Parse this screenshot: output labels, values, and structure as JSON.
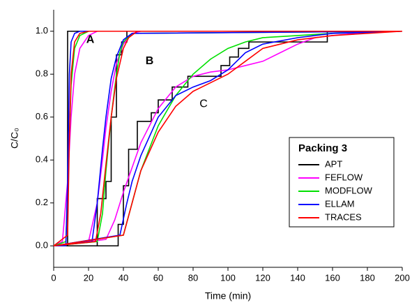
{
  "chart_data": {
    "type": "line",
    "xlabel": "Time (min)",
    "ylabel": "C/C₀",
    "xlim": [
      0,
      200
    ],
    "ylim": [
      -0.1,
      1.1
    ],
    "xticks": [
      0,
      20,
      40,
      60,
      80,
      100,
      120,
      140,
      160,
      180,
      200
    ],
    "yticks": [
      {
        "value": 0,
        "label": "0.0"
      },
      0.2,
      0.4,
      0.6,
      0.8,
      {
        "value": 1,
        "label": "1.0"
      }
    ],
    "legend_title": "Packing 3",
    "legend_position": "lower right",
    "annotations": [
      {
        "text": "A",
        "x": 21,
        "y": 0.96,
        "bold": true
      },
      {
        "text": "B",
        "x": 55,
        "y": 0.86,
        "bold": true
      },
      {
        "text": "C",
        "x": 86,
        "y": 0.66,
        "bold": false
      }
    ],
    "series": [
      {
        "name": "APT",
        "color": "#000000",
        "curves": [
          {
            "x": [
              0,
              8,
              8,
              200
            ],
            "values": [
              0,
              0,
              1,
              1
            ]
          },
          {
            "x": [
              0,
              25,
              25,
              30,
              30,
              33,
              33,
              36,
              36,
              39,
              39,
              42,
              42,
              200
            ],
            "values": [
              0,
              0,
              0.22,
              0.22,
              0.3,
              0.3,
              0.6,
              0.6,
              0.89,
              0.89,
              0.95,
              0.95,
              1,
              1
            ]
          },
          {
            "x": [
              0,
              37,
              37,
              40,
              40,
              43,
              43,
              48,
              48,
              56,
              56,
              60,
              60,
              68,
              68,
              77,
              77,
              96,
              96,
              101,
              101,
              106,
              106,
              112,
              112,
              157,
              157,
              200
            ],
            "values": [
              0,
              0,
              0.1,
              0.1,
              0.28,
              0.28,
              0.45,
              0.45,
              0.58,
              0.58,
              0.62,
              0.62,
              0.68,
              0.68,
              0.74,
              0.74,
              0.79,
              0.79,
              0.84,
              0.84,
              0.88,
              0.88,
              0.92,
              0.92,
              0.95,
              0.95,
              1,
              1
            ]
          }
        ]
      },
      {
        "name": "FEFLOW",
        "color": "#ff00ff",
        "curves": [
          {
            "x": [
              0,
              5,
              8,
              10,
              12,
              15,
              20,
              25,
              30,
              200
            ],
            "values": [
              0,
              0.02,
              0.3,
              0.6,
              0.8,
              0.92,
              0.98,
              1,
              1,
              1
            ]
          },
          {
            "x": [
              0,
              20,
              25,
              28,
              30,
              33,
              36,
              40,
              45,
              50,
              200
            ],
            "values": [
              0,
              0.02,
              0.2,
              0.4,
              0.55,
              0.72,
              0.85,
              0.94,
              0.99,
              1,
              1
            ]
          },
          {
            "x": [
              0,
              30,
              35,
              40,
              50,
              60,
              70,
              80,
              90,
              100,
              110,
              120,
              130,
              140,
              150,
              160,
              180,
              200
            ],
            "values": [
              0,
              0.03,
              0.12,
              0.25,
              0.48,
              0.64,
              0.74,
              0.79,
              0.81,
              0.82,
              0.84,
              0.86,
              0.9,
              0.94,
              0.97,
              0.98,
              0.995,
              1
            ]
          }
        ]
      },
      {
        "name": "MODFLOW",
        "color": "#00e000",
        "curves": [
          {
            "x": [
              0,
              7,
              9,
              10,
              12,
              15,
              20,
              200
            ],
            "values": [
              0,
              0.02,
              0.5,
              0.75,
              0.92,
              0.98,
              1,
              1
            ]
          },
          {
            "x": [
              0,
              25,
              28,
              30,
              33,
              36,
              38,
              40,
              45,
              200
            ],
            "values": [
              0,
              0.02,
              0.15,
              0.35,
              0.6,
              0.8,
              0.9,
              0.95,
              0.99,
              1
            ]
          },
          {
            "x": [
              0,
              40,
              45,
              50,
              60,
              70,
              80,
              90,
              100,
              110,
              120,
              140,
              160,
              180,
              200
            ],
            "values": [
              0,
              0.05,
              0.2,
              0.35,
              0.56,
              0.7,
              0.8,
              0.87,
              0.92,
              0.95,
              0.97,
              0.98,
              0.99,
              0.995,
              1
            ]
          }
        ]
      },
      {
        "name": "ELLAM",
        "color": "#0000ff",
        "curves": [
          {
            "x": [
              0,
              7,
              8,
              9,
              10,
              12,
              15,
              200
            ],
            "values": [
              0,
              0,
              0.3,
              0.8,
              0.95,
              0.99,
              1,
              1
            ]
          },
          {
            "x": [
              0,
              22,
              25,
              28,
              30,
              33,
              36,
              40,
              45,
              200
            ],
            "values": [
              0,
              0.02,
              0.2,
              0.45,
              0.6,
              0.78,
              0.88,
              0.96,
              0.99,
              1
            ]
          },
          {
            "x": [
              0,
              38,
              42,
              45,
              50,
              60,
              70,
              80,
              90,
              100,
              110,
              120,
              140,
              160,
              180,
              200
            ],
            "values": [
              0,
              0.05,
              0.2,
              0.3,
              0.42,
              0.6,
              0.7,
              0.74,
              0.77,
              0.82,
              0.9,
              0.94,
              0.97,
              0.99,
              0.995,
              1
            ]
          }
        ]
      },
      {
        "name": "TRACES",
        "color": "#ff0000",
        "curves": [
          {
            "x": [
              0,
              8,
              9,
              10,
              12,
              15,
              20,
              200
            ],
            "values": [
              0,
              0.05,
              0.5,
              0.8,
              0.95,
              0.99,
              1,
              1
            ]
          },
          {
            "x": [
              0,
              24,
              27,
              30,
              33,
              36,
              40,
              43,
              48,
              200
            ],
            "values": [
              0,
              0.02,
              0.15,
              0.38,
              0.6,
              0.78,
              0.92,
              0.97,
              1,
              1
            ]
          },
          {
            "x": [
              0,
              40,
              45,
              50,
              60,
              70,
              80,
              90,
              100,
              110,
              120,
              140,
              160,
              180,
              200
            ],
            "values": [
              0,
              0.05,
              0.2,
              0.35,
              0.53,
              0.65,
              0.72,
              0.76,
              0.8,
              0.86,
              0.92,
              0.96,
              0.98,
              0.99,
              1
            ]
          }
        ]
      }
    ]
  }
}
